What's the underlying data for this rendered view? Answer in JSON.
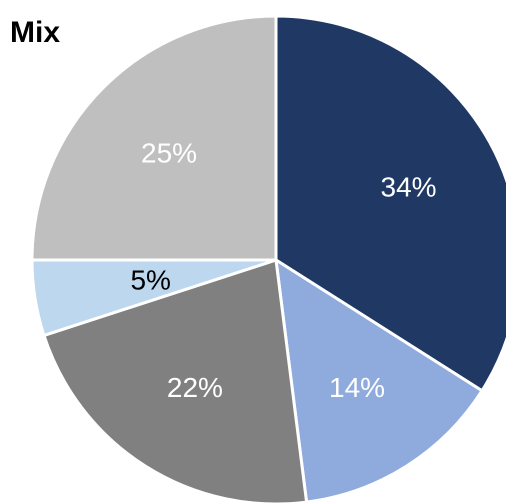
{
  "chart_data": {
    "type": "pie",
    "title": "Mix",
    "slices": [
      {
        "label": "34%",
        "value": 34,
        "color": "#1f3864",
        "label_color": "#ffffff"
      },
      {
        "label": "14%",
        "value": 14,
        "color": "#8faadc",
        "label_color": "#ffffff"
      },
      {
        "label": "22%",
        "value": 22,
        "color": "#808080",
        "label_color": "#ffffff"
      },
      {
        "label": "5%",
        "value": 5,
        "color": "#bdd7ee",
        "label_color": "#000000"
      },
      {
        "label": "25%",
        "value": 25,
        "color": "#bfbfbf",
        "label_color": "#ffffff"
      }
    ],
    "start": "12 o'clock",
    "direction": "clockwise",
    "slice_border": "#ffffff",
    "legend": "none"
  }
}
